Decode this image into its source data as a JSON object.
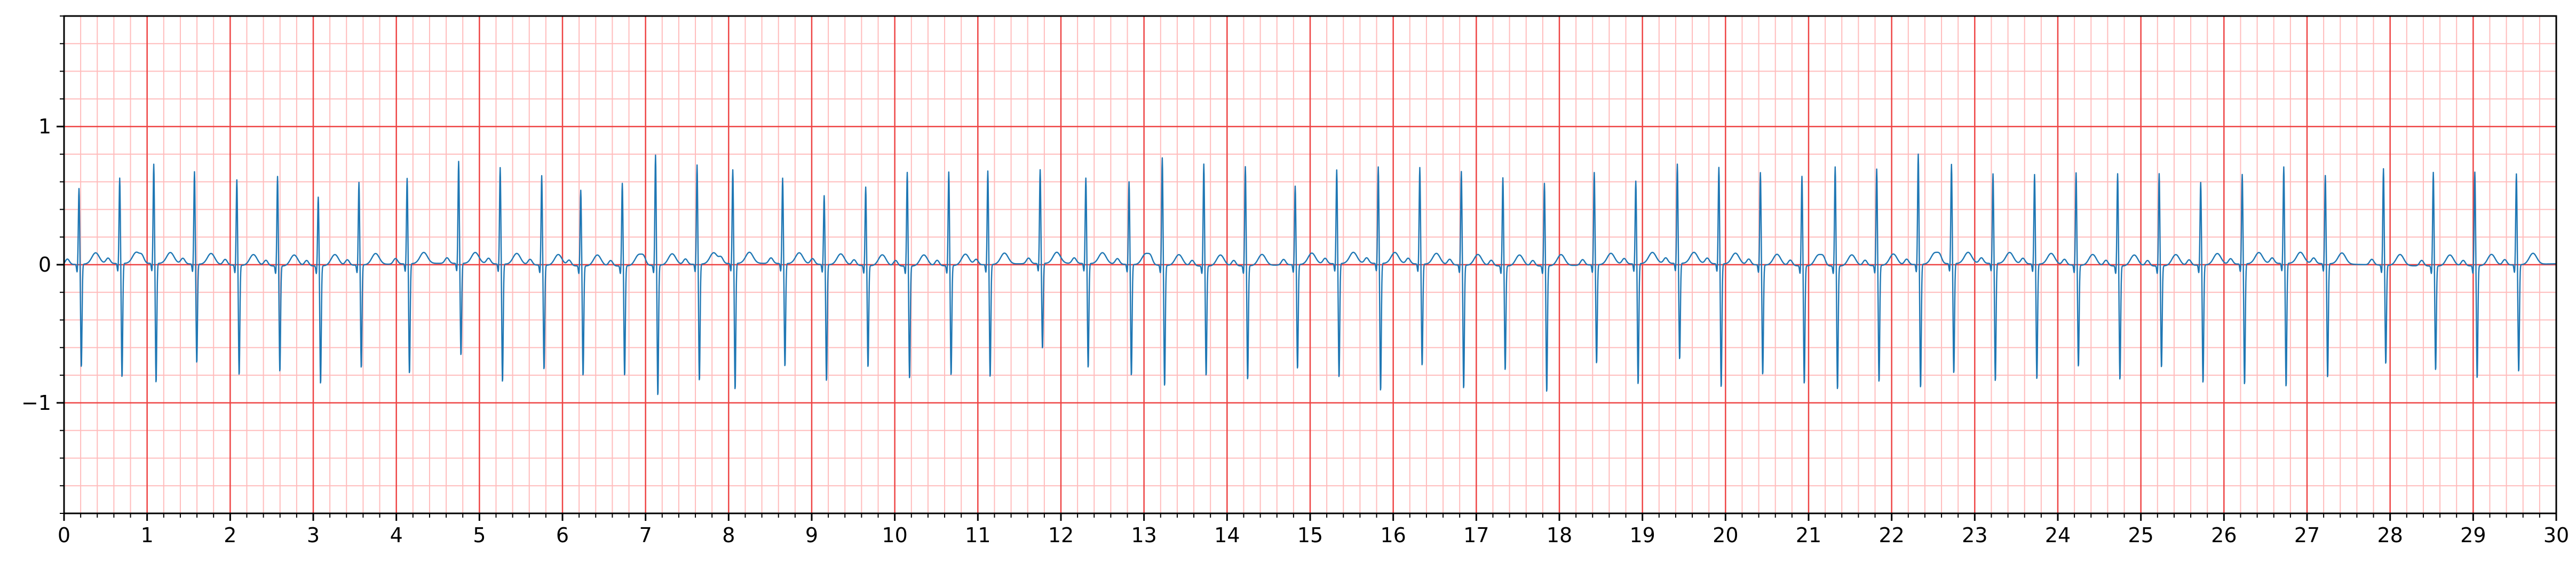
{
  "chart_data": {
    "type": "line",
    "title": "",
    "xlabel": "",
    "ylabel": "",
    "xlim": [
      0,
      30
    ],
    "ylim": [
      -1.8,
      1.8
    ],
    "grid": {
      "major": true,
      "minor": true,
      "major_x_step": 1,
      "major_y_step": 1,
      "minor_x_step": 0.2,
      "minor_y_step": 0.2
    },
    "x_ticks": [
      0,
      1,
      2,
      3,
      4,
      5,
      6,
      7,
      8,
      9,
      10,
      11,
      12,
      13,
      14,
      15,
      16,
      17,
      18,
      19,
      20,
      21,
      22,
      23,
      24,
      25,
      26,
      27,
      28,
      29,
      30
    ],
    "x_tick_labels": [
      "0",
      "1",
      "2",
      "3",
      "4",
      "5",
      "6",
      "7",
      "8",
      "9",
      "10",
      "11",
      "12",
      "13",
      "14",
      "15",
      "16",
      "17",
      "18",
      "19",
      "20",
      "21",
      "22",
      "23",
      "24",
      "25",
      "26",
      "27",
      "28",
      "29",
      "30"
    ],
    "y_ticks": [
      -1,
      0,
      1
    ],
    "y_tick_labels": [
      "−1",
      "0",
      "1"
    ],
    "colors": {
      "line": "#1f77b4",
      "major_grid": "#ee4444",
      "minor_grid": "#ffbcbc",
      "axes": "#000000",
      "background": "#ffffff"
    },
    "series": [
      {
        "beats": [
          [
            0.18,
            0.55,
            -0.75
          ],
          [
            0.67,
            0.62,
            -0.83
          ],
          [
            1.08,
            0.72,
            -0.87
          ],
          [
            1.57,
            0.67,
            -0.72
          ],
          [
            2.08,
            0.62,
            -0.8
          ],
          [
            2.57,
            0.65,
            -0.77
          ],
          [
            3.06,
            0.5,
            -0.86
          ],
          [
            3.55,
            0.6,
            -0.75
          ],
          [
            4.13,
            0.62,
            -0.8
          ],
          [
            4.75,
            0.74,
            -0.67
          ],
          [
            5.25,
            0.7,
            -0.86
          ],
          [
            5.75,
            0.65,
            -0.76
          ],
          [
            6.22,
            0.55,
            -0.8
          ],
          [
            6.72,
            0.6,
            -0.8
          ],
          [
            7.12,
            0.8,
            -0.95
          ],
          [
            7.62,
            0.72,
            -0.85
          ],
          [
            8.05,
            0.68,
            -0.92
          ],
          [
            8.65,
            0.62,
            -0.75
          ],
          [
            9.15,
            0.5,
            -0.85
          ],
          [
            9.65,
            0.57,
            -0.74
          ],
          [
            10.15,
            0.68,
            -0.82
          ],
          [
            10.65,
            0.68,
            -0.8
          ],
          [
            11.12,
            0.68,
            -0.82
          ],
          [
            11.75,
            0.68,
            -0.62
          ],
          [
            12.3,
            0.62,
            -0.76
          ],
          [
            12.82,
            0.6,
            -0.81
          ],
          [
            13.22,
            0.78,
            -0.88
          ],
          [
            13.72,
            0.74,
            -0.8
          ],
          [
            14.22,
            0.72,
            -0.83
          ],
          [
            14.82,
            0.57,
            -0.76
          ],
          [
            15.32,
            0.68,
            -0.83
          ],
          [
            15.82,
            0.7,
            -0.93
          ],
          [
            16.32,
            0.7,
            -0.74
          ],
          [
            16.82,
            0.68,
            -0.9
          ],
          [
            17.32,
            0.64,
            -0.76
          ],
          [
            17.82,
            0.6,
            -0.92
          ],
          [
            18.42,
            0.67,
            -0.72
          ],
          [
            18.92,
            0.6,
            -0.88
          ],
          [
            19.42,
            0.72,
            -0.7
          ],
          [
            19.92,
            0.7,
            -0.9
          ],
          [
            20.42,
            0.67,
            -0.8
          ],
          [
            20.92,
            0.65,
            -0.86
          ],
          [
            21.32,
            0.72,
            -0.9
          ],
          [
            21.82,
            0.7,
            -0.85
          ],
          [
            22.32,
            0.8,
            -0.9
          ],
          [
            22.72,
            0.72,
            -0.8
          ],
          [
            23.22,
            0.65,
            -0.86
          ],
          [
            23.72,
            0.65,
            -0.84
          ],
          [
            24.22,
            0.67,
            -0.74
          ],
          [
            24.72,
            0.67,
            -0.83
          ],
          [
            25.22,
            0.67,
            -0.74
          ],
          [
            25.72,
            0.6,
            -0.86
          ],
          [
            26.22,
            0.65,
            -0.88
          ],
          [
            26.72,
            0.7,
            -0.9
          ],
          [
            27.22,
            0.64,
            -0.83
          ],
          [
            27.92,
            0.7,
            -0.72
          ],
          [
            28.52,
            0.68,
            -0.76
          ],
          [
            29.02,
            0.68,
            -0.82
          ],
          [
            29.52,
            0.66,
            -0.78
          ]
        ]
      }
    ]
  }
}
